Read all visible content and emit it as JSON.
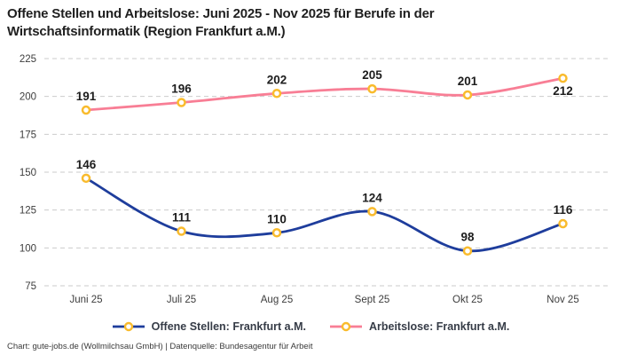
{
  "title_lines": [
    "Offene Stellen und Arbeitslose: Juni 2025 - Nov 2025 für Berufe in der",
    "Wirtschaftsinformatik (Region Frankfurt a.M.)"
  ],
  "footer": "Chart: gute-jobs.de (Wollmilchsau GmbH) | Datenquelle: Bundesagentur für Arbeit",
  "colors": {
    "title": "#1f1f1f",
    "axis_label": "#3d3d3d",
    "point_label": "#1d1d1d",
    "legend_text": "#363c47",
    "footer_text": "#3a3a3a",
    "gridline": "#cbcbcb",
    "series_open_positions": "#1e3d9c",
    "series_unemployed": "#f87e95",
    "marker_stroke": "#f9bb2d",
    "marker_fill": "#ffffff"
  },
  "chart_data": {
    "type": "line",
    "title": "Offene Stellen und Arbeitslose: Juni 2025 - Nov 2025 für Berufe in der Wirtschaftsinformatik (Region Frankfurt a.M.)",
    "categories": [
      "Juni 25",
      "Juli 25",
      "Aug 25",
      "Sept 25",
      "Okt 25",
      "Nov 25"
    ],
    "series": [
      {
        "name": "Offene Stellen: Frankfurt a.M.",
        "values": [
          146,
          111,
          110,
          124,
          98,
          116
        ],
        "color": "#1e3d9c",
        "label_positions": [
          "above",
          "above",
          "above",
          "above",
          "above",
          "above"
        ]
      },
      {
        "name": "Arbeitslose: Frankfurt a.M.",
        "values": [
          191,
          196,
          202,
          205,
          201,
          212
        ],
        "color": "#f87e95",
        "label_positions": [
          "above",
          "above",
          "above",
          "above",
          "above",
          "below"
        ]
      }
    ],
    "marker": {
      "fill": "#ffffff",
      "stroke": "#f9bb2d"
    },
    "xlabel": "",
    "ylabel": "",
    "ylim": [
      75,
      225
    ],
    "yticks": [
      75,
      100,
      125,
      150,
      175,
      200,
      225
    ],
    "grid": "horizontal-dashed",
    "legend_position": "bottom",
    "point_labels": true
  }
}
